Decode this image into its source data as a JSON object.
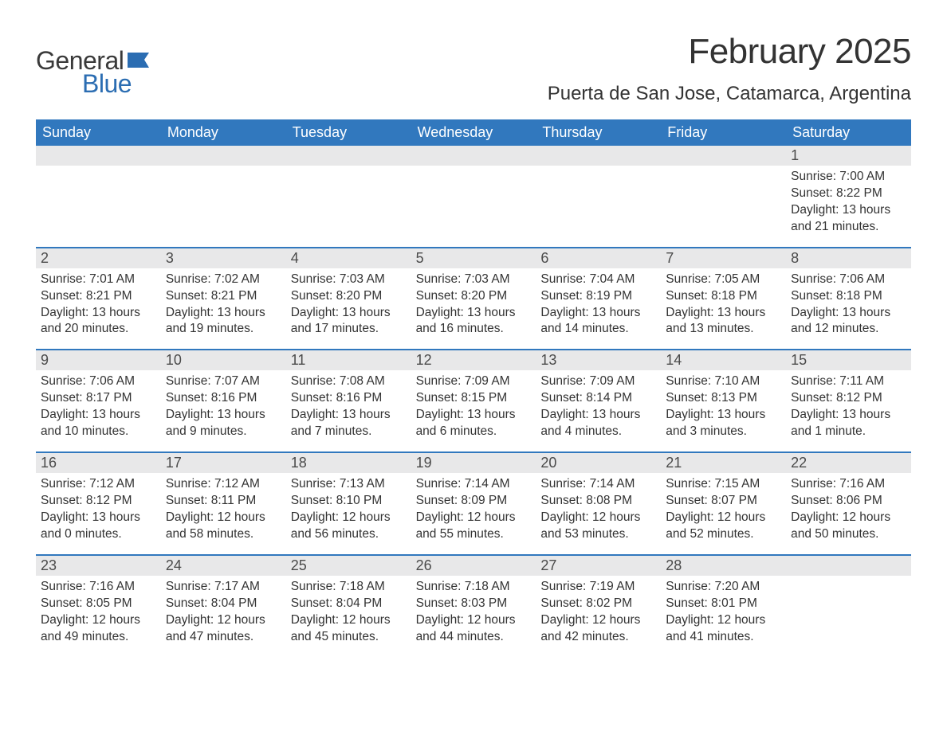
{
  "logo": {
    "text1": "General",
    "text2": "Blue",
    "icon_color": "#2b6db2"
  },
  "heading": {
    "month": "February 2025",
    "location": "Puerta de San Jose, Catamarca, Argentina"
  },
  "colors": {
    "header_bg": "#3178be",
    "header_text": "#ffffff",
    "daynum_bg": "#e8e8e9",
    "row_border": "#3178be",
    "body_text": "#333333"
  },
  "weekdays": [
    "Sunday",
    "Monday",
    "Tuesday",
    "Wednesday",
    "Thursday",
    "Friday",
    "Saturday"
  ],
  "weeks": [
    [
      null,
      null,
      null,
      null,
      null,
      null,
      {
        "n": "1",
        "sr": "Sunrise: 7:00 AM",
        "ss": "Sunset: 8:22 PM",
        "d1": "Daylight: 13 hours",
        "d2": "and 21 minutes."
      }
    ],
    [
      {
        "n": "2",
        "sr": "Sunrise: 7:01 AM",
        "ss": "Sunset: 8:21 PM",
        "d1": "Daylight: 13 hours",
        "d2": "and 20 minutes."
      },
      {
        "n": "3",
        "sr": "Sunrise: 7:02 AM",
        "ss": "Sunset: 8:21 PM",
        "d1": "Daylight: 13 hours",
        "d2": "and 19 minutes."
      },
      {
        "n": "4",
        "sr": "Sunrise: 7:03 AM",
        "ss": "Sunset: 8:20 PM",
        "d1": "Daylight: 13 hours",
        "d2": "and 17 minutes."
      },
      {
        "n": "5",
        "sr": "Sunrise: 7:03 AM",
        "ss": "Sunset: 8:20 PM",
        "d1": "Daylight: 13 hours",
        "d2": "and 16 minutes."
      },
      {
        "n": "6",
        "sr": "Sunrise: 7:04 AM",
        "ss": "Sunset: 8:19 PM",
        "d1": "Daylight: 13 hours",
        "d2": "and 14 minutes."
      },
      {
        "n": "7",
        "sr": "Sunrise: 7:05 AM",
        "ss": "Sunset: 8:18 PM",
        "d1": "Daylight: 13 hours",
        "d2": "and 13 minutes."
      },
      {
        "n": "8",
        "sr": "Sunrise: 7:06 AM",
        "ss": "Sunset: 8:18 PM",
        "d1": "Daylight: 13 hours",
        "d2": "and 12 minutes."
      }
    ],
    [
      {
        "n": "9",
        "sr": "Sunrise: 7:06 AM",
        "ss": "Sunset: 8:17 PM",
        "d1": "Daylight: 13 hours",
        "d2": "and 10 minutes."
      },
      {
        "n": "10",
        "sr": "Sunrise: 7:07 AM",
        "ss": "Sunset: 8:16 PM",
        "d1": "Daylight: 13 hours",
        "d2": "and 9 minutes."
      },
      {
        "n": "11",
        "sr": "Sunrise: 7:08 AM",
        "ss": "Sunset: 8:16 PM",
        "d1": "Daylight: 13 hours",
        "d2": "and 7 minutes."
      },
      {
        "n": "12",
        "sr": "Sunrise: 7:09 AM",
        "ss": "Sunset: 8:15 PM",
        "d1": "Daylight: 13 hours",
        "d2": "and 6 minutes."
      },
      {
        "n": "13",
        "sr": "Sunrise: 7:09 AM",
        "ss": "Sunset: 8:14 PM",
        "d1": "Daylight: 13 hours",
        "d2": "and 4 minutes."
      },
      {
        "n": "14",
        "sr": "Sunrise: 7:10 AM",
        "ss": "Sunset: 8:13 PM",
        "d1": "Daylight: 13 hours",
        "d2": "and 3 minutes."
      },
      {
        "n": "15",
        "sr": "Sunrise: 7:11 AM",
        "ss": "Sunset: 8:12 PM",
        "d1": "Daylight: 13 hours",
        "d2": "and 1 minute."
      }
    ],
    [
      {
        "n": "16",
        "sr": "Sunrise: 7:12 AM",
        "ss": "Sunset: 8:12 PM",
        "d1": "Daylight: 13 hours",
        "d2": "and 0 minutes."
      },
      {
        "n": "17",
        "sr": "Sunrise: 7:12 AM",
        "ss": "Sunset: 8:11 PM",
        "d1": "Daylight: 12 hours",
        "d2": "and 58 minutes."
      },
      {
        "n": "18",
        "sr": "Sunrise: 7:13 AM",
        "ss": "Sunset: 8:10 PM",
        "d1": "Daylight: 12 hours",
        "d2": "and 56 minutes."
      },
      {
        "n": "19",
        "sr": "Sunrise: 7:14 AM",
        "ss": "Sunset: 8:09 PM",
        "d1": "Daylight: 12 hours",
        "d2": "and 55 minutes."
      },
      {
        "n": "20",
        "sr": "Sunrise: 7:14 AM",
        "ss": "Sunset: 8:08 PM",
        "d1": "Daylight: 12 hours",
        "d2": "and 53 minutes."
      },
      {
        "n": "21",
        "sr": "Sunrise: 7:15 AM",
        "ss": "Sunset: 8:07 PM",
        "d1": "Daylight: 12 hours",
        "d2": "and 52 minutes."
      },
      {
        "n": "22",
        "sr": "Sunrise: 7:16 AM",
        "ss": "Sunset: 8:06 PM",
        "d1": "Daylight: 12 hours",
        "d2": "and 50 minutes."
      }
    ],
    [
      {
        "n": "23",
        "sr": "Sunrise: 7:16 AM",
        "ss": "Sunset: 8:05 PM",
        "d1": "Daylight: 12 hours",
        "d2": "and 49 minutes."
      },
      {
        "n": "24",
        "sr": "Sunrise: 7:17 AM",
        "ss": "Sunset: 8:04 PM",
        "d1": "Daylight: 12 hours",
        "d2": "and 47 minutes."
      },
      {
        "n": "25",
        "sr": "Sunrise: 7:18 AM",
        "ss": "Sunset: 8:04 PM",
        "d1": "Daylight: 12 hours",
        "d2": "and 45 minutes."
      },
      {
        "n": "26",
        "sr": "Sunrise: 7:18 AM",
        "ss": "Sunset: 8:03 PM",
        "d1": "Daylight: 12 hours",
        "d2": "and 44 minutes."
      },
      {
        "n": "27",
        "sr": "Sunrise: 7:19 AM",
        "ss": "Sunset: 8:02 PM",
        "d1": "Daylight: 12 hours",
        "d2": "and 42 minutes."
      },
      {
        "n": "28",
        "sr": "Sunrise: 7:20 AM",
        "ss": "Sunset: 8:01 PM",
        "d1": "Daylight: 12 hours",
        "d2": "and 41 minutes."
      },
      null
    ]
  ]
}
